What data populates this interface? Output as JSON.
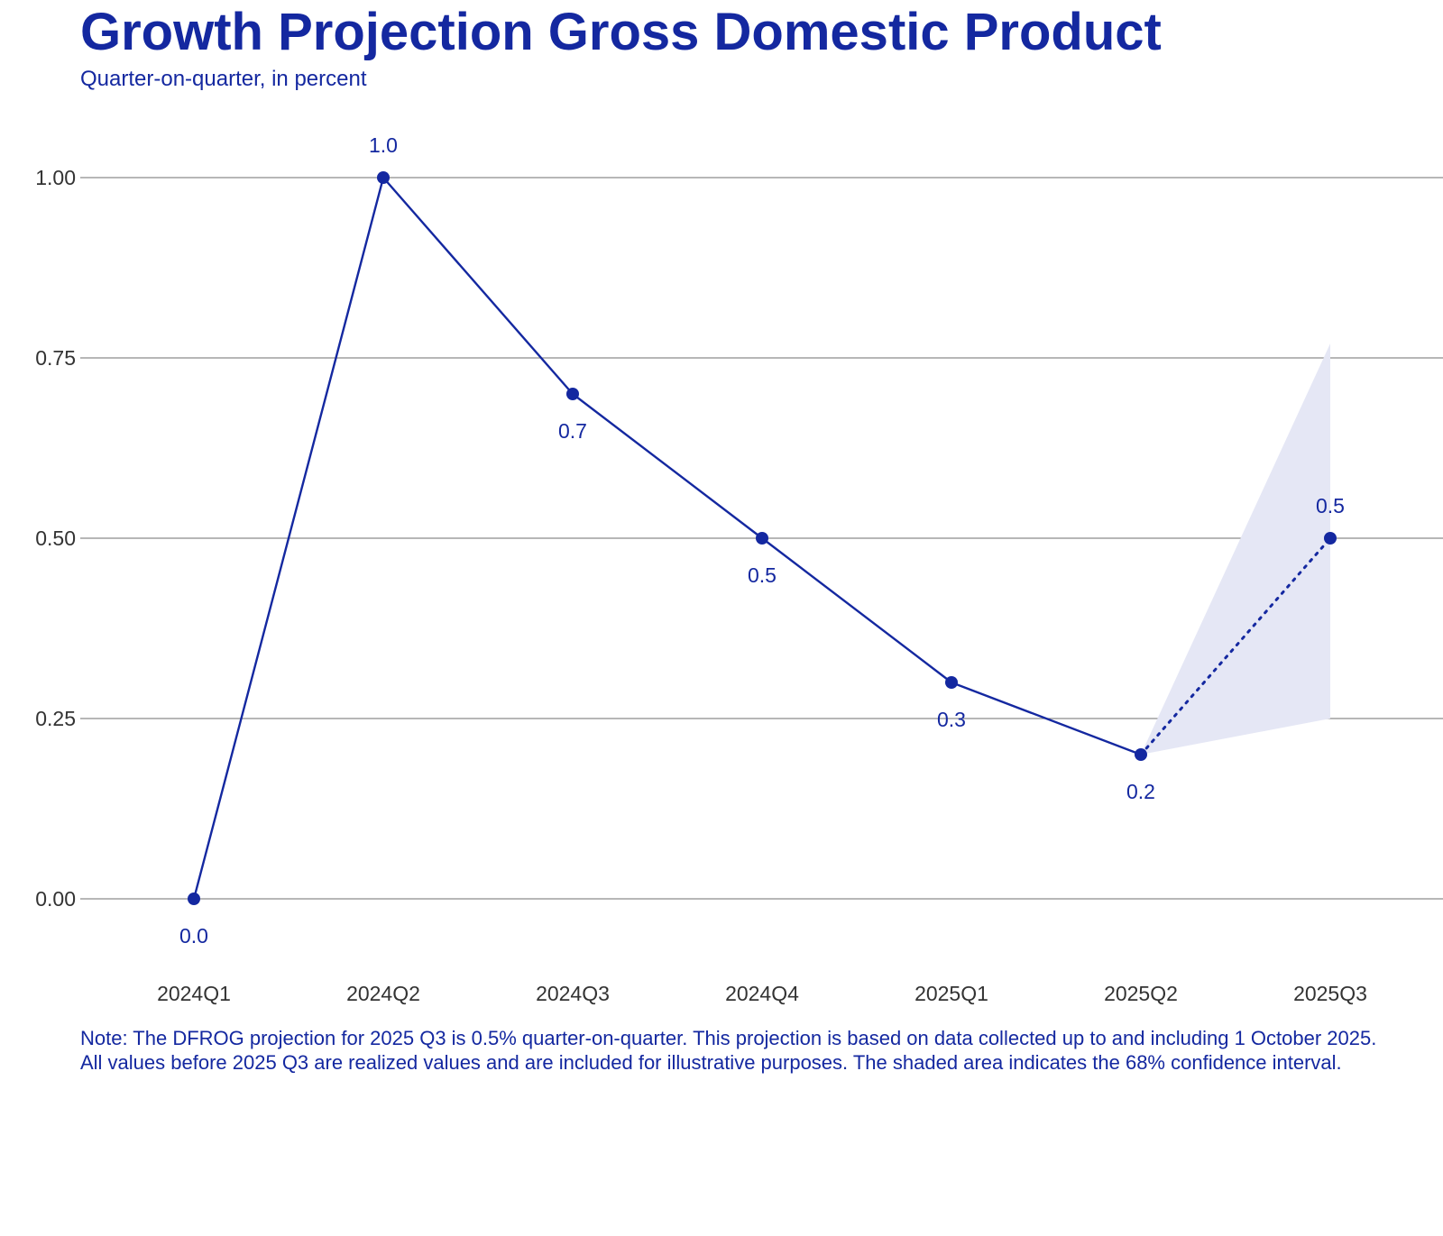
{
  "chart_data": {
    "type": "line",
    "title": "Growth Projection Gross Domestic Product",
    "subtitle": "Quarter-on-quarter, in percent",
    "xlabel": "",
    "ylabel": "",
    "categories": [
      "2024Q1",
      "2024Q2",
      "2024Q3",
      "2024Q4",
      "2025Q1",
      "2025Q2",
      "2025Q3"
    ],
    "series": [
      {
        "name": "Realized",
        "style": "solid",
        "values": [
          0.0,
          1.0,
          0.7,
          0.5,
          0.3,
          0.2,
          null
        ],
        "labels": [
          "0.0",
          "1.0",
          "0.7",
          "0.5",
          "0.3",
          "0.2",
          null
        ],
        "label_position": [
          "below",
          "above",
          "below",
          "below",
          "below",
          "below",
          null
        ]
      },
      {
        "name": "Projection",
        "style": "dotted",
        "values": [
          null,
          null,
          null,
          null,
          null,
          0.2,
          0.5
        ],
        "labels": [
          null,
          null,
          null,
          null,
          null,
          null,
          "0.5"
        ],
        "label_position": [
          null,
          null,
          null,
          null,
          null,
          null,
          "above"
        ]
      }
    ],
    "confidence_interval": {
      "label": "68% confidence interval",
      "categories": [
        "2025Q2",
        "2025Q3"
      ],
      "lower": [
        0.2,
        0.25
      ],
      "upper": [
        0.2,
        0.77
      ]
    },
    "yticks": [
      0.0,
      0.25,
      0.5,
      0.75,
      1.0
    ],
    "ytick_labels": [
      "0.00",
      "0.25",
      "0.50",
      "0.75",
      "1.00"
    ],
    "ylim": [
      -0.09,
      1.1
    ],
    "grid": "horizontal",
    "legend": "none",
    "colors": {
      "line": "#1428a0",
      "band": "#e5e7f5",
      "grid": "#8c8c8c",
      "tick_text": "#333333"
    },
    "note": "Note: The DFROG projection for 2025 Q3 is 0.5% quarter-on-quarter. This projection is based on data collected up to and including 1 October 2025. All values before 2025 Q3 are realized values and are included for illustrative purposes. The shaded area indicates the 68% confidence interval."
  }
}
